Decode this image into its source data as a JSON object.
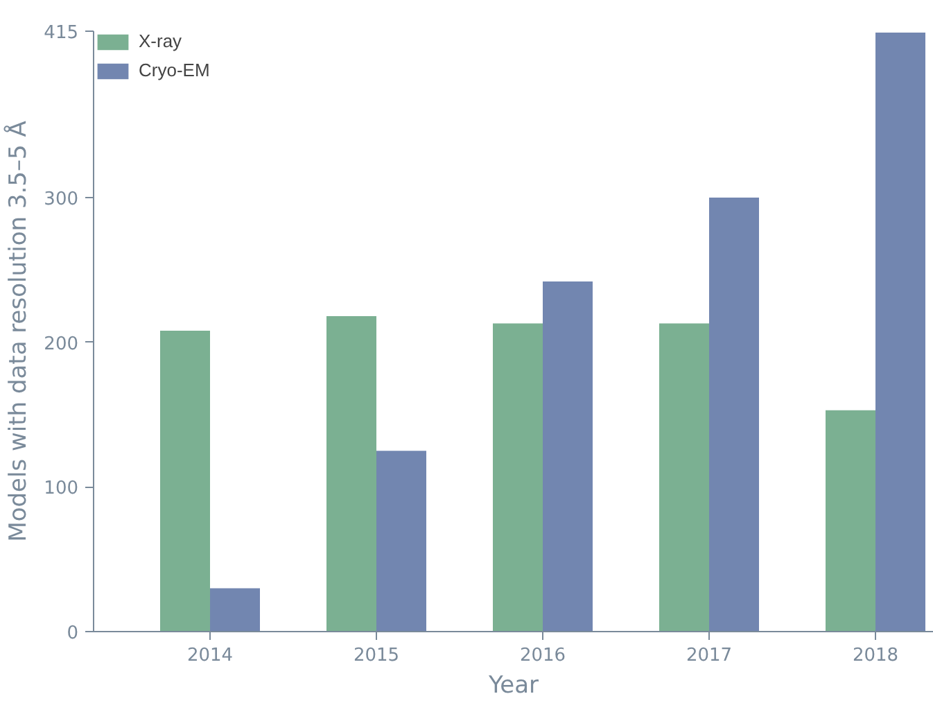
{
  "chart_data": {
    "type": "bar",
    "xlabel": "Year",
    "ylabel": "Models with data resolution 3.5–5 Å",
    "categories": [
      "2014",
      "2015",
      "2016",
      "2017",
      "2018"
    ],
    "series": [
      {
        "name": "X-ray",
        "color": "#7bb092",
        "values": [
          208,
          218,
          213,
          213,
          153
        ]
      },
      {
        "name": "Cryo-EM",
        "color": "#7286b0",
        "values": [
          30,
          125,
          242,
          300,
          414
        ]
      }
    ],
    "ylim": [
      0,
      415
    ],
    "yticks": [
      0,
      100,
      200,
      300,
      415
    ],
    "grid": false,
    "legend": "top left"
  }
}
